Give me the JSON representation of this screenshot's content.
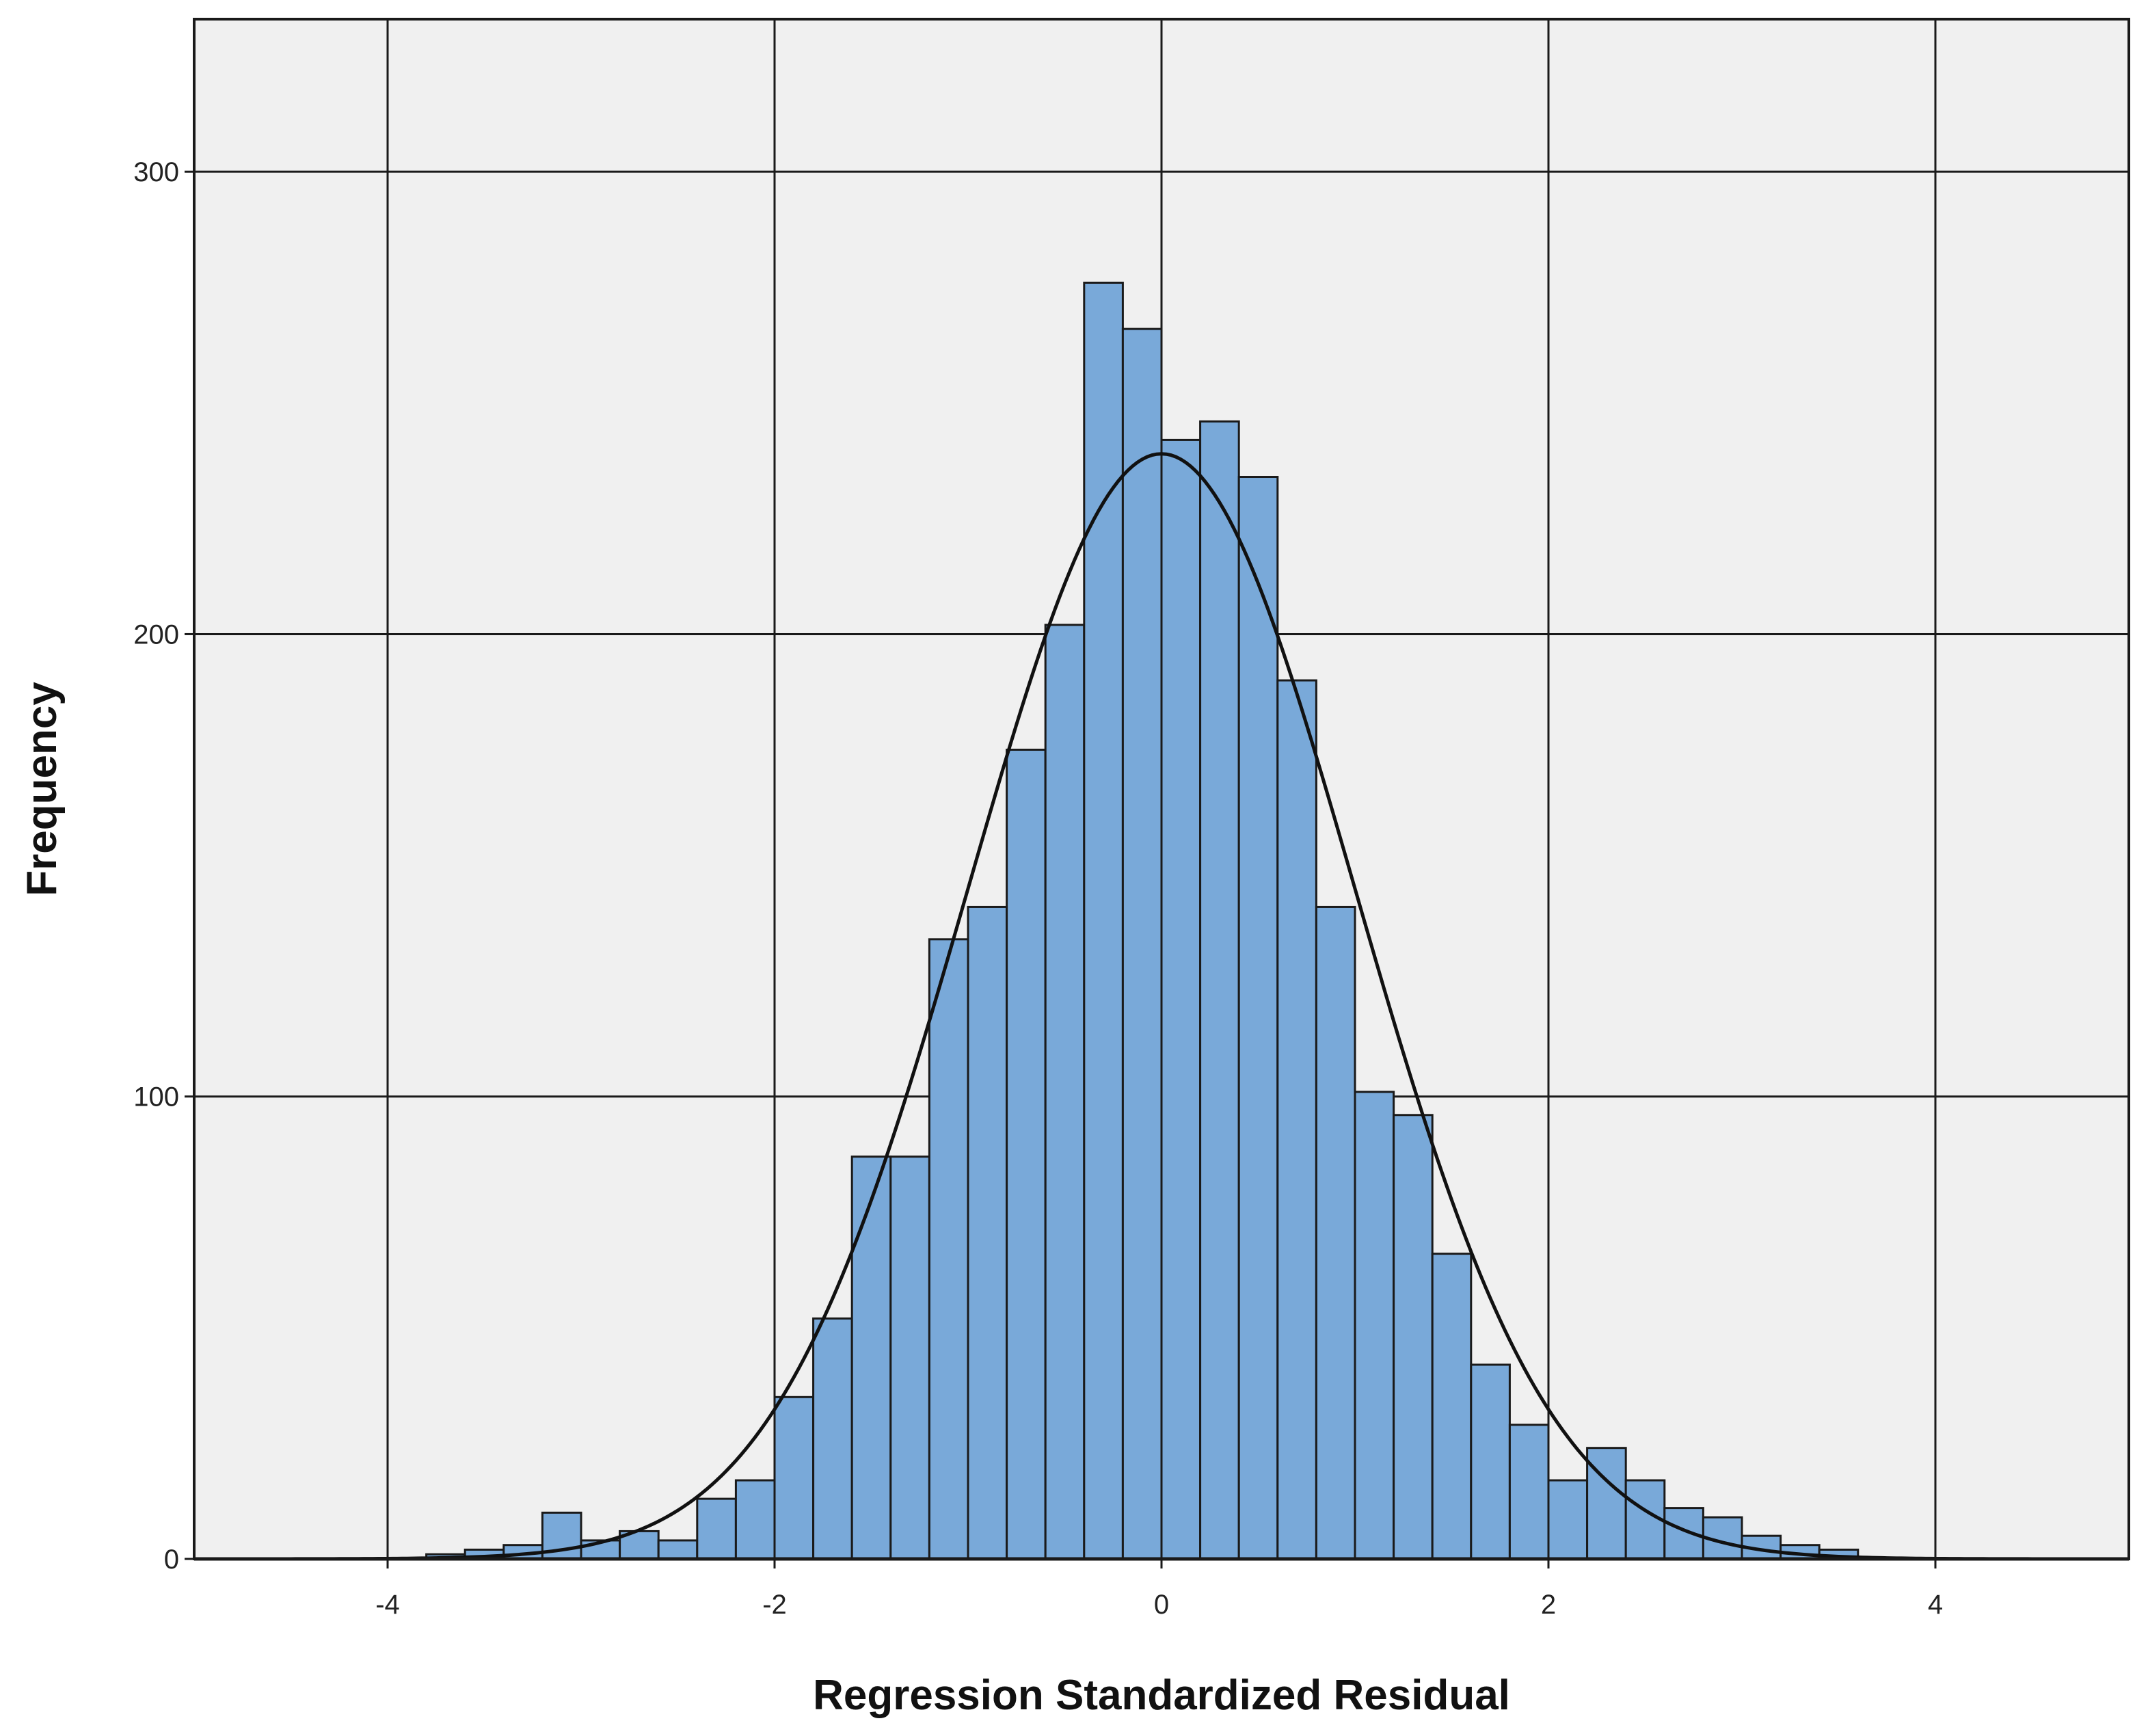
{
  "chart_data": {
    "type": "bar",
    "title": "",
    "xlabel": "Regression Standardized Residual",
    "ylabel": "Frequency",
    "xlim": [
      -5,
      5
    ],
    "ylim": [
      0,
      333
    ],
    "xticks": [
      -4,
      -2,
      0,
      2,
      4
    ],
    "yticks": [
      0,
      100,
      200,
      300
    ],
    "xtick_labels": [
      "-4",
      "-2",
      "0",
      "2",
      "4"
    ],
    "ytick_labels": [
      "0",
      "100",
      "200",
      "300"
    ],
    "grid": true,
    "bin_width": 0.2,
    "bins": [
      {
        "x0": -3.8,
        "x1": -3.6,
        "value": 1
      },
      {
        "x0": -3.6,
        "x1": -3.4,
        "value": 2
      },
      {
        "x0": -3.4,
        "x1": -3.2,
        "value": 3
      },
      {
        "x0": -3.2,
        "x1": -3.0,
        "value": 10
      },
      {
        "x0": -3.0,
        "x1": -2.8,
        "value": 4
      },
      {
        "x0": -2.8,
        "x1": -2.6,
        "value": 6
      },
      {
        "x0": -2.6,
        "x1": -2.4,
        "value": 4
      },
      {
        "x0": -2.4,
        "x1": -2.2,
        "value": 13
      },
      {
        "x0": -2.2,
        "x1": -2.0,
        "value": 17
      },
      {
        "x0": -2.0,
        "x1": -1.8,
        "value": 35
      },
      {
        "x0": -1.8,
        "x1": -1.6,
        "value": 52
      },
      {
        "x0": -1.6,
        "x1": -1.4,
        "value": 87
      },
      {
        "x0": -1.4,
        "x1": -1.2,
        "value": 87
      },
      {
        "x0": -1.2,
        "x1": -1.0,
        "value": 134
      },
      {
        "x0": -1.0,
        "x1": -0.8,
        "value": 141
      },
      {
        "x0": -0.8,
        "x1": -0.6,
        "value": 175
      },
      {
        "x0": -0.6,
        "x1": -0.4,
        "value": 202
      },
      {
        "x0": -0.4,
        "x1": -0.2,
        "value": 276
      },
      {
        "x0": -0.2,
        "x1": 0.0,
        "value": 266
      },
      {
        "x0": 0.0,
        "x1": 0.2,
        "value": 242
      },
      {
        "x0": 0.2,
        "x1": 0.4,
        "value": 246
      },
      {
        "x0": 0.4,
        "x1": 0.6,
        "value": 234
      },
      {
        "x0": 0.6,
        "x1": 0.8,
        "value": 190
      },
      {
        "x0": 0.8,
        "x1": 1.0,
        "value": 141
      },
      {
        "x0": 1.0,
        "x1": 1.2,
        "value": 101
      },
      {
        "x0": 1.2,
        "x1": 1.4,
        "value": 96
      },
      {
        "x0": 1.4,
        "x1": 1.6,
        "value": 66
      },
      {
        "x0": 1.6,
        "x1": 1.8,
        "value": 42
      },
      {
        "x0": 1.8,
        "x1": 2.0,
        "value": 29
      },
      {
        "x0": 2.0,
        "x1": 2.2,
        "value": 17
      },
      {
        "x0": 2.2,
        "x1": 2.4,
        "value": 24
      },
      {
        "x0": 2.4,
        "x1": 2.6,
        "value": 17
      },
      {
        "x0": 2.6,
        "x1": 2.8,
        "value": 11
      },
      {
        "x0": 2.8,
        "x1": 3.0,
        "value": 9
      },
      {
        "x0": 3.0,
        "x1": 3.2,
        "value": 5
      },
      {
        "x0": 3.2,
        "x1": 3.4,
        "value": 3
      },
      {
        "x0": 3.4,
        "x1": 3.6,
        "value": 2
      }
    ],
    "normal_curve": {
      "mean": 0,
      "peak_frequency": 239
    },
    "colors": {
      "bar_fill": "#79a9d9",
      "bar_stroke": "#1a1a1a",
      "plot_background": "#f0f0f0",
      "grid": "#1a1a1a",
      "curve": "#111111"
    }
  }
}
